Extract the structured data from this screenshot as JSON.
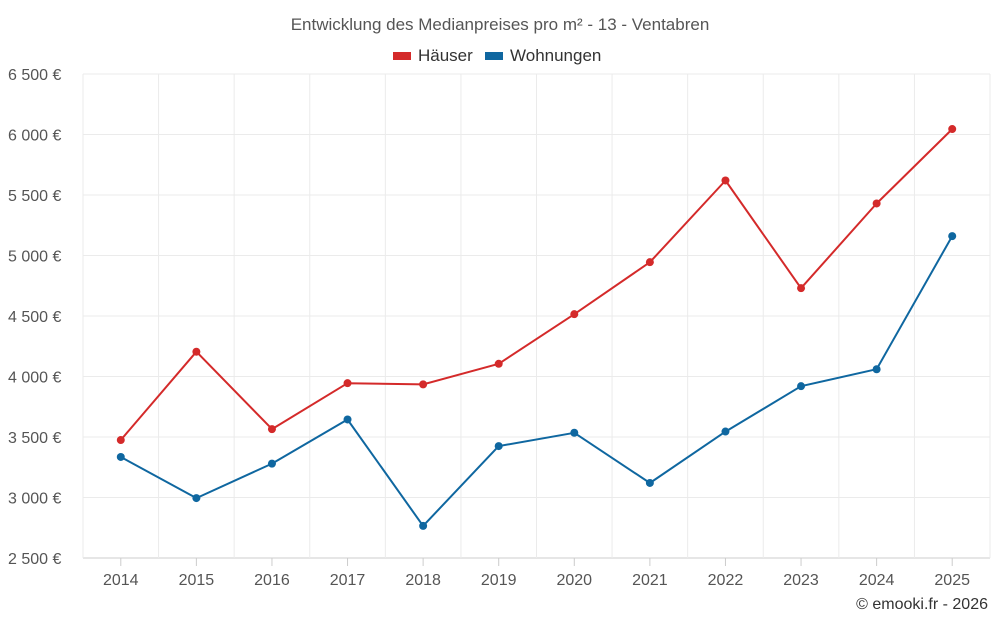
{
  "chart_data": {
    "type": "line",
    "title": "Entwicklung des Medianpreises pro m² - 13 - Ventabren",
    "categories": [
      "2014",
      "2015",
      "2016",
      "2017",
      "2018",
      "2019",
      "2020",
      "2021",
      "2022",
      "2023",
      "2024",
      "2025"
    ],
    "series": [
      {
        "name": "Häuser",
        "color": "#d42a2a",
        "values": [
          3475,
          4205,
          3565,
          3945,
          3935,
          4105,
          4515,
          4945,
          5620,
          4730,
          5430,
          6045
        ]
      },
      {
        "name": "Wohnungen",
        "color": "#0f67a0",
        "values": [
          3335,
          2995,
          3280,
          3645,
          2765,
          3425,
          3535,
          3120,
          3545,
          3920,
          4060,
          5160
        ]
      }
    ],
    "ylim": [
      2500,
      6500
    ],
    "yticks": [
      2500,
      3000,
      3500,
      4000,
      4500,
      5000,
      5500,
      6000,
      6500
    ],
    "ytick_labels": [
      "2 500 €",
      "3 000 €",
      "3 500 €",
      "4 000 €",
      "4 500 €",
      "5 000 €",
      "5 500 €",
      "6 000 €",
      "6 500 €"
    ],
    "xlabel": "",
    "ylabel": "",
    "grid": true,
    "legend_position": "top-center"
  },
  "credit": "© emooki.fr - 2026"
}
